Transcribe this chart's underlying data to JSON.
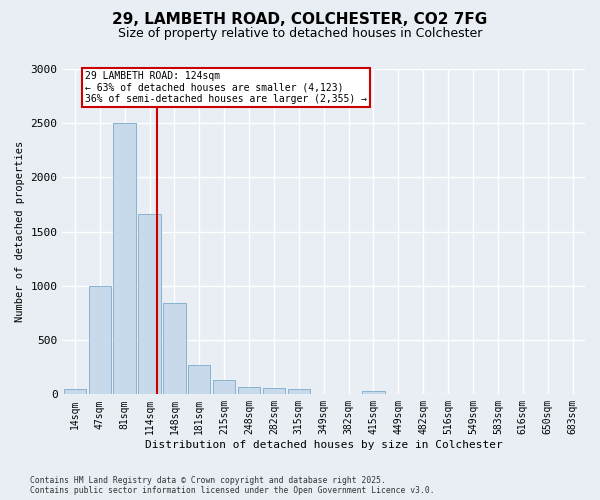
{
  "title_line1": "29, LAMBETH ROAD, COLCHESTER, CO2 7FG",
  "title_line2": "Size of property relative to detached houses in Colchester",
  "xlabel": "Distribution of detached houses by size in Colchester",
  "ylabel": "Number of detached properties",
  "bar_color": "#c9d9ec",
  "bar_edge_color": "#7aaac8",
  "categories": [
    "14sqm",
    "47sqm",
    "81sqm",
    "114sqm",
    "148sqm",
    "181sqm",
    "215sqm",
    "248sqm",
    "282sqm",
    "315sqm",
    "349sqm",
    "382sqm",
    "415sqm",
    "449sqm",
    "482sqm",
    "516sqm",
    "549sqm",
    "583sqm",
    "616sqm",
    "650sqm",
    "683sqm"
  ],
  "values": [
    50,
    1000,
    2500,
    1660,
    840,
    270,
    130,
    65,
    60,
    45,
    0,
    0,
    30,
    0,
    0,
    0,
    0,
    0,
    0,
    0,
    0
  ],
  "ylim": [
    0,
    3000
  ],
  "yticks": [
    0,
    500,
    1000,
    1500,
    2000,
    2500,
    3000
  ],
  "vline_color": "#cc0000",
  "annotation_title": "29 LAMBETH ROAD: 124sqm",
  "annotation_line2": "← 63% of detached houses are smaller (4,123)",
  "annotation_line3": "36% of semi-detached houses are larger (2,355) →",
  "annotation_box_color": "#cc0000",
  "footer_line1": "Contains HM Land Registry data © Crown copyright and database right 2025.",
  "footer_line2": "Contains public sector information licensed under the Open Government Licence v3.0.",
  "background_color": "#e8eef4",
  "plot_bg_color": "#e8eef4",
  "grid_color": "#ffffff"
}
